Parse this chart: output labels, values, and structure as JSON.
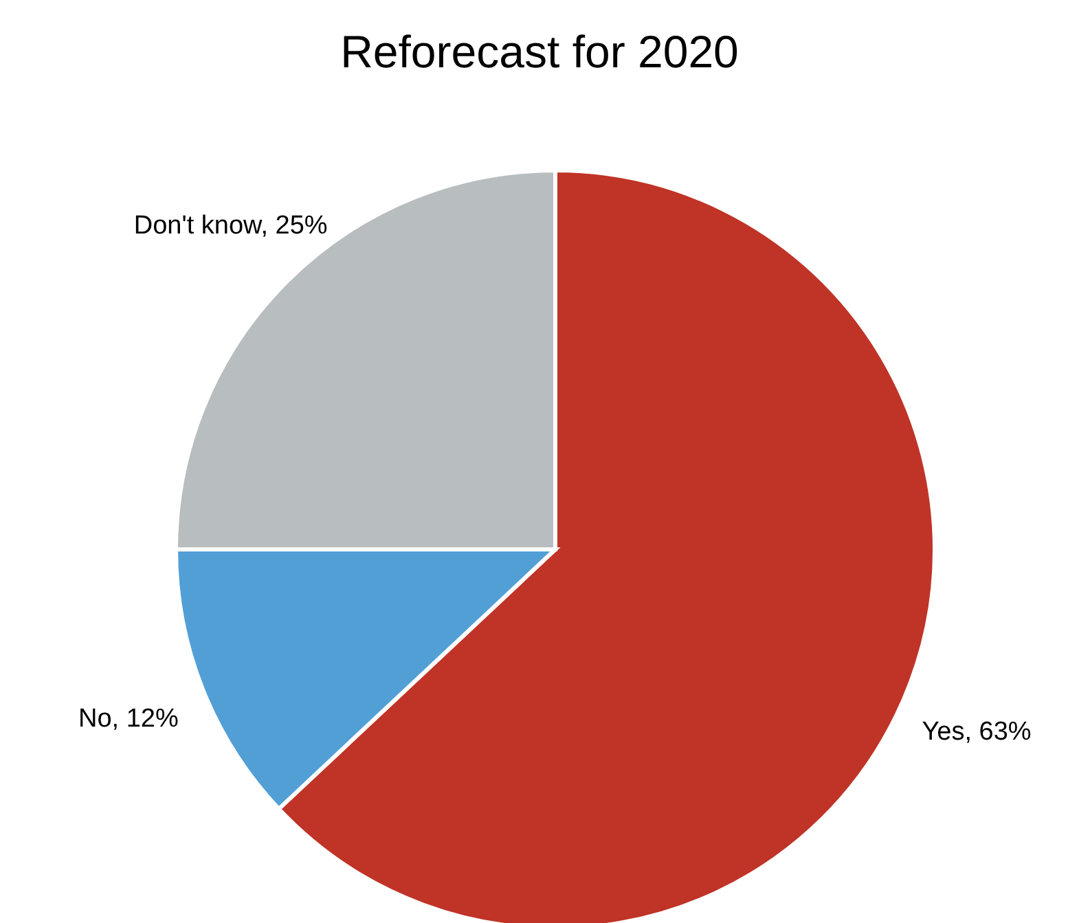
{
  "chart_data": {
    "type": "pie",
    "title": "Reforecast for 2020",
    "categories": [
      "Yes",
      "No",
      "Don't know"
    ],
    "values": [
      63,
      12,
      25
    ],
    "colors": [
      "#c03327",
      "#529fd6",
      "#b8bec0"
    ],
    "value_labels": [
      "63%",
      "12%",
      "25%"
    ],
    "legend": false
  }
}
